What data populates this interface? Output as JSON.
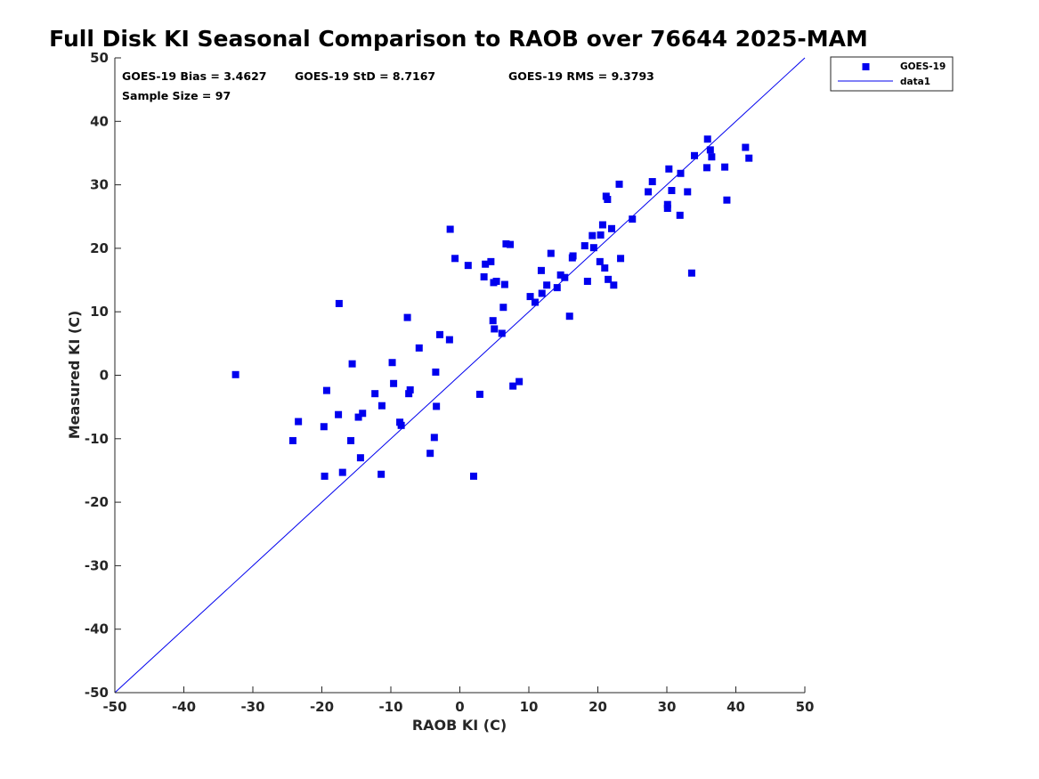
{
  "chart_data": {
    "type": "scatter",
    "title": "Full Disk KI Seasonal Comparison to RAOB over 76644 2025-MAM",
    "xlabel": "RAOB KI (C)",
    "ylabel": "Measured KI (C)",
    "xlim": [
      -50,
      50
    ],
    "ylim": [
      -50,
      50
    ],
    "xticks": [
      "-50",
      "-40",
      "-30",
      "-20",
      "-10",
      "0",
      "10",
      "20",
      "30",
      "40",
      "50"
    ],
    "yticks": [
      "-50",
      "-40",
      "-30",
      "-20",
      "-10",
      "0",
      "10",
      "20",
      "30",
      "40",
      "50"
    ],
    "grid": false,
    "legend_position": "top-right (outside)",
    "annotations": {
      "bias": "GOES-19 Bias = 3.4627",
      "std": "GOES-19 StD = 8.7167",
      "rms": "GOES-19 RMS = 9.3793",
      "sample_size": "Sample Size = 97"
    },
    "series": [
      {
        "name": "GOES-19",
        "kind": "scatter",
        "marker": "square",
        "color": "#0000ee",
        "points": [
          [
            -32.5,
            0.1
          ],
          [
            -24.2,
            -10.3
          ],
          [
            -23.4,
            -7.3
          ],
          [
            -19.7,
            -8.1
          ],
          [
            -19.6,
            -15.9
          ],
          [
            -19.3,
            -2.4
          ],
          [
            -17.6,
            -6.2
          ],
          [
            -17.5,
            11.3
          ],
          [
            -17.0,
            -15.3
          ],
          [
            -15.8,
            -10.3
          ],
          [
            -15.6,
            1.8
          ],
          [
            -14.7,
            -6.6
          ],
          [
            -14.4,
            -13.0
          ],
          [
            -14.1,
            -6.0
          ],
          [
            -12.3,
            -2.9
          ],
          [
            -11.4,
            -15.6
          ],
          [
            -11.3,
            -4.8
          ],
          [
            -9.8,
            2.0
          ],
          [
            -9.6,
            -1.3
          ],
          [
            -8.7,
            -7.4
          ],
          [
            -8.5,
            -7.9
          ],
          [
            -7.6,
            9.1
          ],
          [
            -7.4,
            -2.9
          ],
          [
            -7.2,
            -2.3
          ],
          [
            -5.9,
            4.3
          ],
          [
            -4.3,
            -12.3
          ],
          [
            -3.7,
            -9.8
          ],
          [
            -3.5,
            0.5
          ],
          [
            -3.4,
            -4.9
          ],
          [
            -2.9,
            6.4
          ],
          [
            -1.5,
            5.6
          ],
          [
            -1.4,
            23.0
          ],
          [
            -0.7,
            18.4
          ],
          [
            1.2,
            17.3
          ],
          [
            2.0,
            -15.9
          ],
          [
            2.9,
            -3.0
          ],
          [
            3.5,
            15.5
          ],
          [
            3.7,
            17.5
          ],
          [
            4.5,
            17.9
          ],
          [
            4.8,
            8.6
          ],
          [
            4.9,
            14.6
          ],
          [
            5.0,
            7.3
          ],
          [
            5.3,
            14.8
          ],
          [
            6.1,
            6.6
          ],
          [
            6.3,
            10.7
          ],
          [
            6.5,
            14.3
          ],
          [
            6.7,
            20.7
          ],
          [
            7.3,
            20.6
          ],
          [
            7.7,
            -1.7
          ],
          [
            8.6,
            -1.0
          ],
          [
            10.2,
            12.4
          ],
          [
            10.9,
            11.5
          ],
          [
            11.8,
            16.5
          ],
          [
            11.9,
            12.9
          ],
          [
            12.6,
            14.2
          ],
          [
            13.2,
            19.2
          ],
          [
            14.1,
            13.8
          ],
          [
            14.6,
            15.8
          ],
          [
            15.2,
            15.4
          ],
          [
            15.9,
            9.3
          ],
          [
            16.3,
            18.5
          ],
          [
            16.4,
            18.8
          ],
          [
            18.1,
            20.4
          ],
          [
            18.5,
            14.8
          ],
          [
            19.2,
            22.0
          ],
          [
            19.4,
            20.1
          ],
          [
            20.3,
            17.9
          ],
          [
            20.4,
            22.1
          ],
          [
            20.7,
            23.7
          ],
          [
            21.0,
            16.9
          ],
          [
            21.2,
            28.2
          ],
          [
            21.4,
            27.7
          ],
          [
            21.5,
            15.1
          ],
          [
            22.0,
            23.1
          ],
          [
            22.3,
            14.2
          ],
          [
            23.1,
            30.1
          ],
          [
            23.3,
            18.4
          ],
          [
            25.0,
            24.6
          ],
          [
            27.3,
            28.9
          ],
          [
            27.9,
            30.5
          ],
          [
            30.1,
            26.3
          ],
          [
            30.1,
            26.9
          ],
          [
            30.3,
            32.5
          ],
          [
            30.7,
            29.1
          ],
          [
            31.9,
            25.2
          ],
          [
            32.0,
            31.8
          ],
          [
            33.0,
            28.9
          ],
          [
            33.6,
            16.1
          ],
          [
            34.0,
            34.6
          ],
          [
            35.8,
            32.7
          ],
          [
            35.9,
            37.2
          ],
          [
            36.3,
            35.5
          ],
          [
            36.5,
            34.4
          ],
          [
            38.4,
            32.8
          ],
          [
            38.7,
            27.6
          ],
          [
            41.4,
            35.9
          ],
          [
            41.9,
            34.2
          ]
        ]
      },
      {
        "name": "data1",
        "kind": "line",
        "color": "#0000ee",
        "x": [
          -50,
          50
        ],
        "y": [
          -50,
          50
        ]
      }
    ]
  }
}
